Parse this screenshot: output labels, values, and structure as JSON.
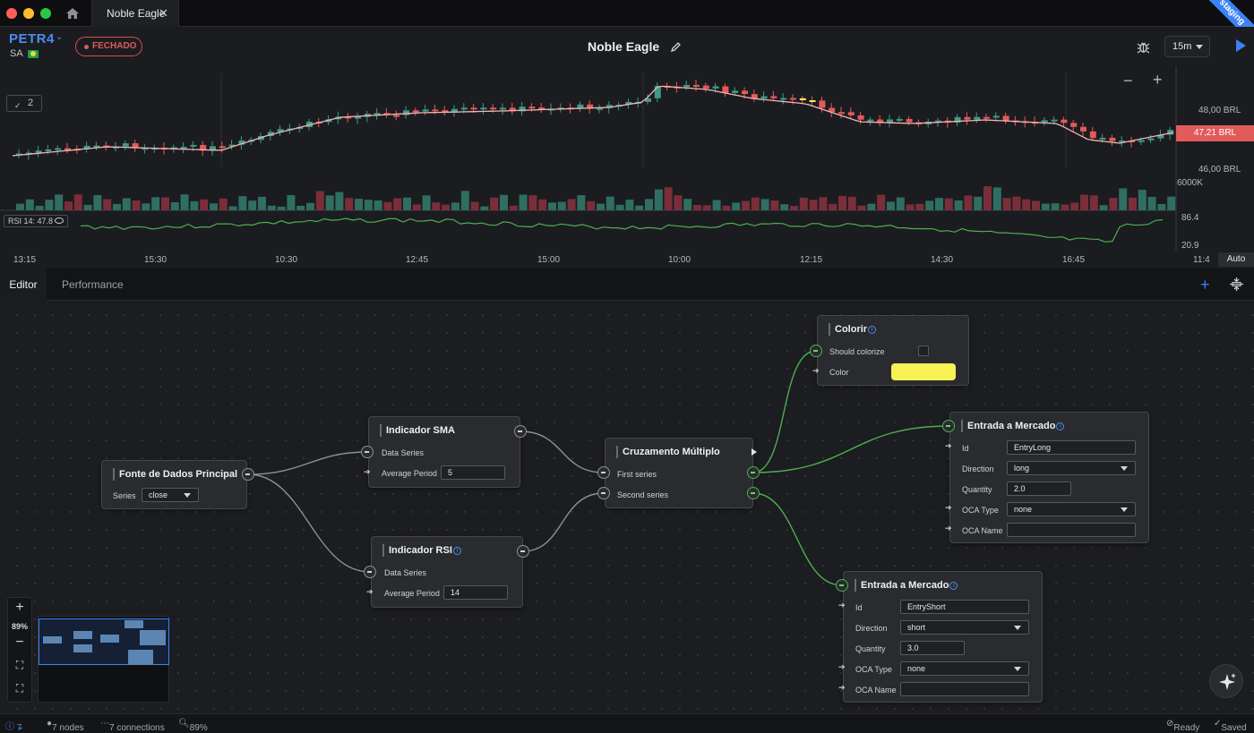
{
  "window": {
    "tab_title": "Noble Eagle",
    "env_badge": "staging"
  },
  "header": {
    "symbol": "PETR4",
    "exchange": "SA",
    "market_status": "FECHADO",
    "strategy_name": "Noble Eagle",
    "timeframe": "15m",
    "colors": {
      "accent": "#3b82f6",
      "closed": "#e05a5a"
    }
  },
  "chart": {
    "pane_count": "2",
    "price_labels": [
      "48,00 BRL",
      "46,00 BRL"
    ],
    "current_price": "47,21 BRL",
    "volume_label": "6000K",
    "rsi_label": "RSI 14: 47.8",
    "rsi_axis": [
      "86.4",
      "20.9"
    ],
    "time_labels": [
      "13:15",
      "15:30",
      "10:30",
      "12:45",
      "15:00",
      "10:00",
      "12:15",
      "14:30",
      "16:45",
      "11:4"
    ],
    "auto_label": "Auto",
    "colors": {
      "up": "#3f9b86",
      "down": "#e25b5b",
      "sma": "#f2b3b3",
      "rsi": "#4caf50",
      "highlight": "#f5f056"
    }
  },
  "editor": {
    "tabs": [
      "Editor",
      "Performance"
    ],
    "zoom": "89%",
    "nodes": {
      "source": {
        "title": "Fonte de Dados Principal",
        "series_label": "Series",
        "series_value": "close"
      },
      "sma": {
        "title": "Indicador SMA",
        "data_series": "Data Series",
        "period_label": "Average Period",
        "period_value": "5"
      },
      "rsi": {
        "title": "Indicador RSI",
        "data_series": "Data Series",
        "period_label": "Average Period",
        "period_value": "14"
      },
      "cross": {
        "title": "Cruzamento Múltiplo",
        "first": "First series",
        "second": "Second series"
      },
      "colorize": {
        "title": "Colorir",
        "should_label": "Should colorize",
        "color_label": "Color",
        "color_value": "#f7f156"
      },
      "entry_long": {
        "title": "Entrada a Mercado",
        "id_label": "Id",
        "id_value": "EntryLong",
        "direction_label": "Direction",
        "direction_value": "long",
        "quantity_label": "Quantity",
        "quantity_value": "2.0",
        "oca_type_label": "OCA Type",
        "oca_type_value": "none",
        "oca_name_label": "OCA Name",
        "oca_name_value": ""
      },
      "entry_short": {
        "title": "Entrada a Mercado",
        "id_label": "Id",
        "id_value": "EntryShort",
        "direction_label": "Direction",
        "direction_value": "short",
        "quantity_label": "Quantity",
        "quantity_value": "3.0",
        "oca_type_label": "OCA Type",
        "oca_type_value": "none",
        "oca_name_label": "OCA Name",
        "oca_name_value": ""
      }
    }
  },
  "statusbar": {
    "issues": "7",
    "nodes": "7 nodes",
    "connections": "7 connections",
    "zoom": "89%",
    "ready": "Ready",
    "saved": "Saved"
  }
}
